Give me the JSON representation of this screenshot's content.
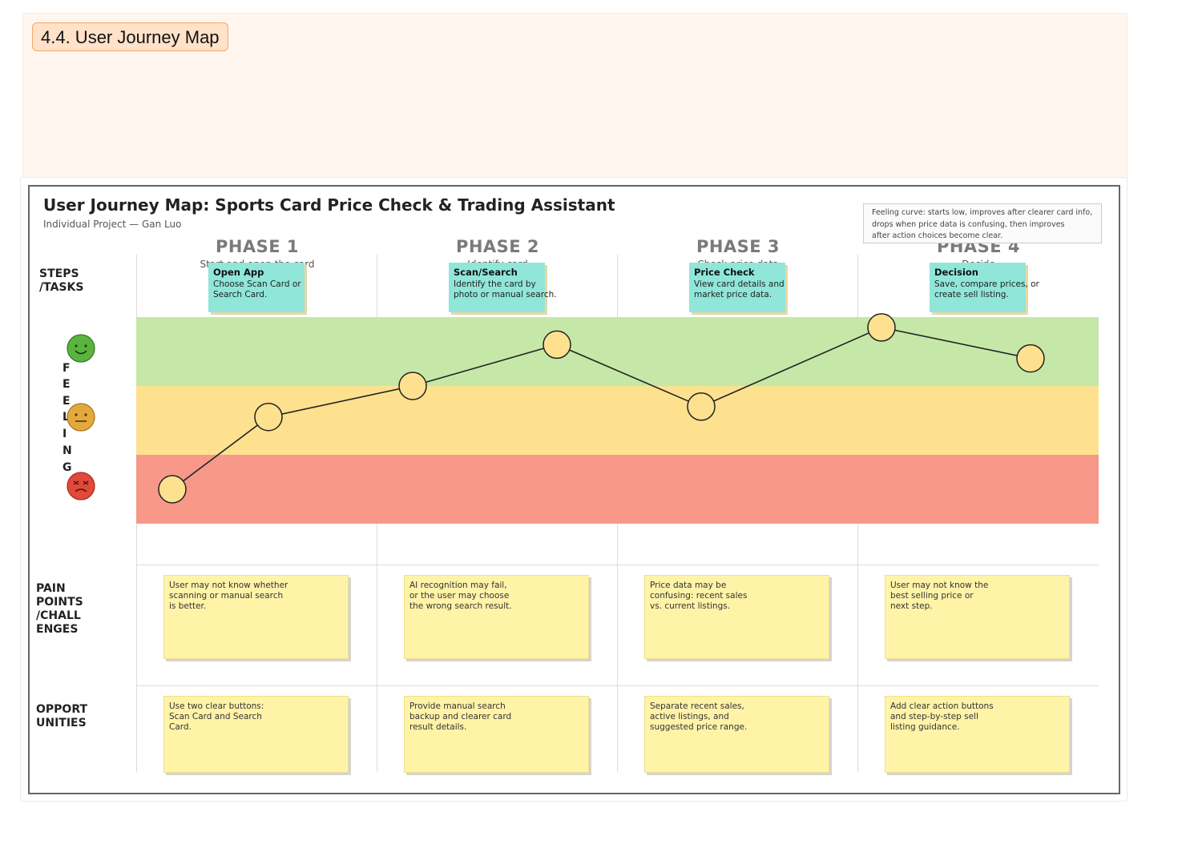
{
  "section": {
    "title": "4.4. User Journey Map"
  },
  "diagram": {
    "title": "User Journey Map: Sports Card Price Check & Trading Assistant",
    "subtitle": "Individual Project — Gan Luo",
    "note": [
      "Feeling curve: starts low, improves after clearer card info,",
      "drops when price data is confusing, then improves",
      "after action choices become clear."
    ]
  },
  "row_labels": {
    "steps": "STEPS\n/TASKS",
    "feeling": [
      "F",
      "E",
      "E",
      "L",
      "I",
      "N",
      "G"
    ],
    "pain": "PAIN\nPOINTS\n/CHALL\nENGES",
    "opportunities": "OPPORT\nUNITIES"
  },
  "faces": {
    "happy": "happy-face-icon",
    "neutral": "neutral-face-icon",
    "sad": "sad-face-icon"
  },
  "colors": {
    "band_positive": "#c5e8a9",
    "band_neutral": "#fde18f",
    "band_negative": "#f79888",
    "task_card": "#8fe6d9",
    "sticky": "#fff3a8",
    "point_fill": "#fde18f"
  },
  "phases": [
    {
      "name": "PHASE 1",
      "subtitle": "Start and open the card",
      "task_title": "Open App",
      "task_desc": "Choose Scan Card or\nSearch Card.",
      "pain": "User may not know whether\nscanning or manual search\nis better.",
      "opportunity": "Use two clear buttons:\nScan Card and Search\nCard."
    },
    {
      "name": "PHASE 2",
      "subtitle": "Identify card",
      "task_title": "Scan/Search",
      "task_desc": "Identify the card by\nphoto or manual search.",
      "pain": "AI recognition may fail,\nor the user may choose\nthe wrong search result.",
      "opportunity": "Provide manual search\nbackup and clearer card\nresult details."
    },
    {
      "name": "PHASE 3",
      "subtitle": "Check price data",
      "task_title": "Price Check",
      "task_desc": "View card details and\nmarket price data.",
      "pain": "Price data may be\nconfusing: recent sales\nvs. current listings.",
      "opportunity": "Separate recent sales,\nactive listings, and\nsuggested price range."
    },
    {
      "name": "PHASE 4",
      "subtitle": "Decide",
      "task_title": "Decision",
      "task_desc": "Save, compare prices, or\ncreate sell listing.",
      "pain": "User may not know the\nbest selling price or\nnext step.",
      "opportunity": "Add clear action buttons\nand step-by-step sell\nlisting guidance."
    }
  ],
  "chart_data": {
    "type": "line",
    "x": [
      0.15,
      0.55,
      1.15,
      1.75,
      2.35,
      3.1,
      3.72
    ],
    "values": [
      0.0,
      1.05,
      1.5,
      2.1,
      1.2,
      2.35,
      1.9
    ],
    "ylim": [
      -0.5,
      2.5
    ],
    "xlim": [
      0,
      4
    ],
    "bands": [
      "negative",
      "neutral",
      "positive"
    ]
  }
}
